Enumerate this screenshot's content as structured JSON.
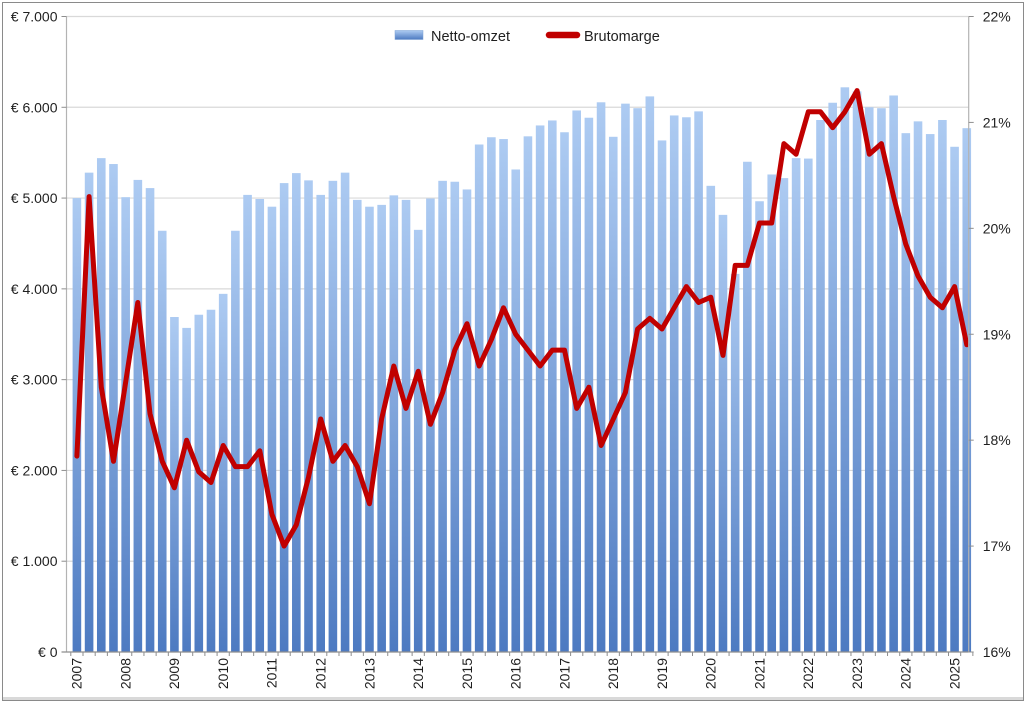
{
  "chart_data": {
    "type": "bar-line-combo",
    "title": "",
    "legend": [
      {
        "label": "Netto-omzet",
        "type": "bar",
        "color_top": "#adcbf2",
        "color_bottom": "#4d7ac1"
      },
      {
        "label": "Brutomarge",
        "type": "line",
        "color": "#c00000"
      }
    ],
    "x_years": [
      "2007",
      "2008",
      "2009",
      "2010",
      "2011",
      "2012",
      "2013",
      "2014",
      "2015",
      "2016",
      "2017",
      "2018",
      "2019",
      "2020",
      "2021",
      "2022",
      "2023",
      "2024",
      "2025"
    ],
    "quarters_per_year": [
      4,
      4,
      4,
      4,
      4,
      4,
      4,
      4,
      4,
      4,
      4,
      4,
      4,
      4,
      4,
      4,
      4,
      4,
      2
    ],
    "left_axis": {
      "title": "",
      "unit": "EUR",
      "min": 0,
      "max": 7000,
      "step": 1000,
      "tick_labels": [
        "€ 0",
        "€ 1.000",
        "€ 2.000",
        "€ 3.000",
        "€ 4.000",
        "€ 5.000",
        "€ 6.000",
        "€ 7.000"
      ]
    },
    "right_axis": {
      "title": "",
      "unit": "%",
      "min": 16,
      "max": 22,
      "step": 1,
      "tick_labels": [
        "16%",
        "17%",
        "18%",
        "19%",
        "20%",
        "21%",
        "22%"
      ]
    },
    "grid": "horizontal-only",
    "legend_position": "top-center",
    "series": [
      {
        "name": "Netto-omzet",
        "type": "bar",
        "axis": "left",
        "values": [
          5000,
          5280,
          5440,
          5375,
          5010,
          5200,
          5110,
          4640,
          3690,
          3570,
          3715,
          3770,
          3945,
          4640,
          5035,
          4990,
          4905,
          5165,
          5275,
          5195,
          5035,
          5190,
          5280,
          4980,
          4905,
          4925,
          5030,
          4980,
          4650,
          4995,
          5190,
          5180,
          5095,
          5590,
          5670,
          5650,
          5315,
          5680,
          5800,
          5855,
          5725,
          5965,
          5885,
          6055,
          5675,
          6040,
          5990,
          6120,
          5635,
          5910,
          5890,
          5955,
          5135,
          4815,
          4165,
          5400,
          4965,
          5260,
          5220,
          5440,
          5435,
          5860,
          6050,
          6220,
          6175,
          6000,
          5990,
          6130,
          5715,
          5845,
          5705,
          5860,
          5565,
          5770
        ]
      },
      {
        "name": "Brutomarge",
        "type": "line",
        "axis": "right",
        "values": [
          17.85,
          20.3,
          18.5,
          17.8,
          18.55,
          19.3,
          18.25,
          17.8,
          17.55,
          18.0,
          17.7,
          17.6,
          17.95,
          17.75,
          17.75,
          17.9,
          17.3,
          17.0,
          17.2,
          17.65,
          18.2,
          17.8,
          17.95,
          17.75,
          17.4,
          18.2,
          18.7,
          18.3,
          18.65,
          18.15,
          18.45,
          18.85,
          19.1,
          18.7,
          18.95,
          19.25,
          19.0,
          18.85,
          18.7,
          18.85,
          18.85,
          18.3,
          18.5,
          17.95,
          18.2,
          18.45,
          19.05,
          19.15,
          19.05,
          19.25,
          19.45,
          19.3,
          19.35,
          18.8,
          19.65,
          19.65,
          20.05,
          20.05,
          20.8,
          20.7,
          21.1,
          21.1,
          20.95,
          21.1,
          21.3,
          20.7,
          20.8,
          20.3,
          19.85,
          19.55,
          19.35,
          19.25,
          19.45,
          18.9
        ]
      }
    ],
    "colors": {
      "bar_top": "#adcbf2",
      "bar_bottom": "#4d7ac1",
      "line": "#c00000",
      "gridline": "#d9d9d9",
      "axis_line": "#8e8e8e",
      "plot_edge": "#b3b3b3",
      "text": "#1f1f1f"
    }
  }
}
